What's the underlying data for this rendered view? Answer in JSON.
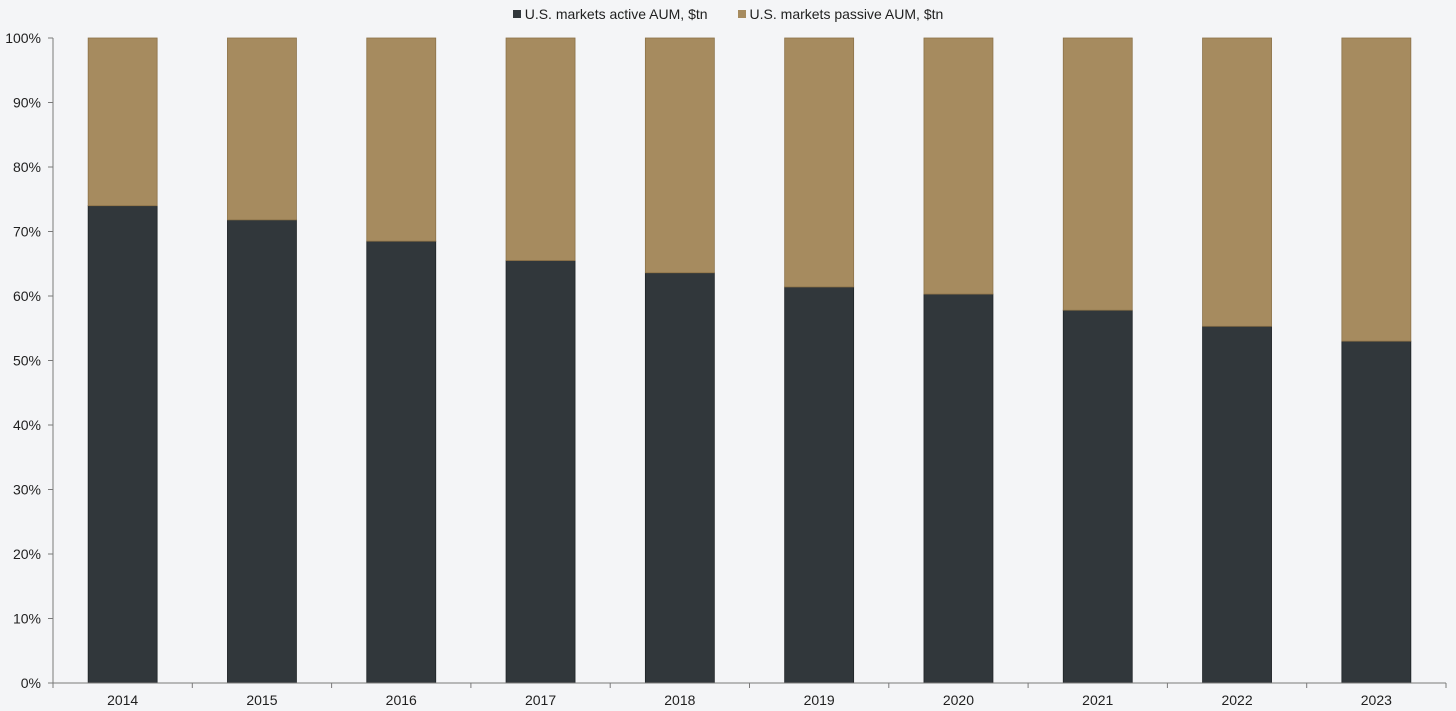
{
  "chart_data": {
    "type": "bar",
    "stacked": true,
    "normalized": true,
    "categories": [
      "2014",
      "2015",
      "2016",
      "2017",
      "2018",
      "2019",
      "2020",
      "2021",
      "2022",
      "2023"
    ],
    "series": [
      {
        "name": "U.S. markets active AUM, $tn",
        "color": "#31373b",
        "values": [
          74.0,
          71.8,
          68.5,
          65.5,
          63.6,
          61.4,
          60.3,
          57.8,
          55.3,
          53.0
        ]
      },
      {
        "name": "U.S. markets passive AUM, $tn",
        "color": "#a68b5f",
        "values": [
          26.0,
          28.2,
          31.5,
          34.5,
          36.4,
          38.6,
          39.7,
          42.2,
          44.7,
          47.0
        ]
      }
    ],
    "ylim": [
      0,
      100
    ],
    "yticks": [
      "0%",
      "10%",
      "20%",
      "30%",
      "40%",
      "50%",
      "60%",
      "70%",
      "80%",
      "90%",
      "100%"
    ],
    "legend_position": "top-center",
    "grid": false
  }
}
